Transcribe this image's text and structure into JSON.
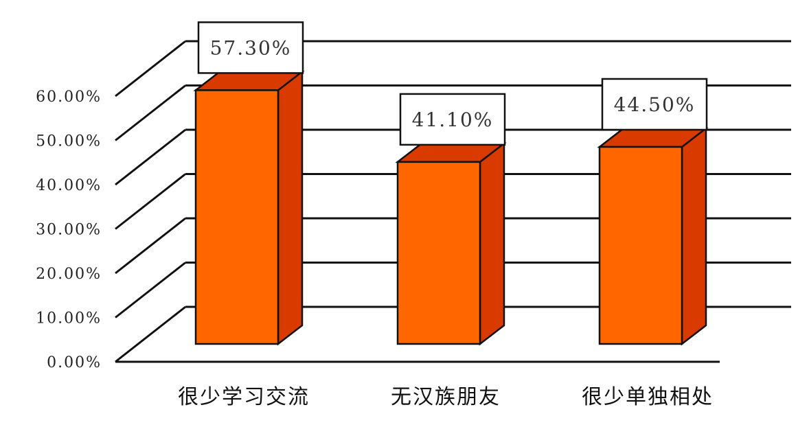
{
  "chart_data": {
    "type": "bar",
    "style": "3d-column",
    "categories": [
      "很少学习交流",
      "无汉族朋友",
      "很少单独相处"
    ],
    "values": [
      57.3,
      41.1,
      44.5
    ],
    "data_labels": [
      "57.30%",
      "41.10%",
      "44.50%"
    ],
    "y_ticks": [
      "0.00%",
      "10.00%",
      "20.00%",
      "30.00%",
      "40.00%",
      "50.00%",
      "60.00%"
    ],
    "ylim": [
      0,
      70
    ],
    "grid": true,
    "legend": "none",
    "colors": {
      "bar_front": "#FF6600",
      "bar_side": "#D83A00",
      "bar_top": "#D83A00",
      "grid": "#111111"
    }
  }
}
